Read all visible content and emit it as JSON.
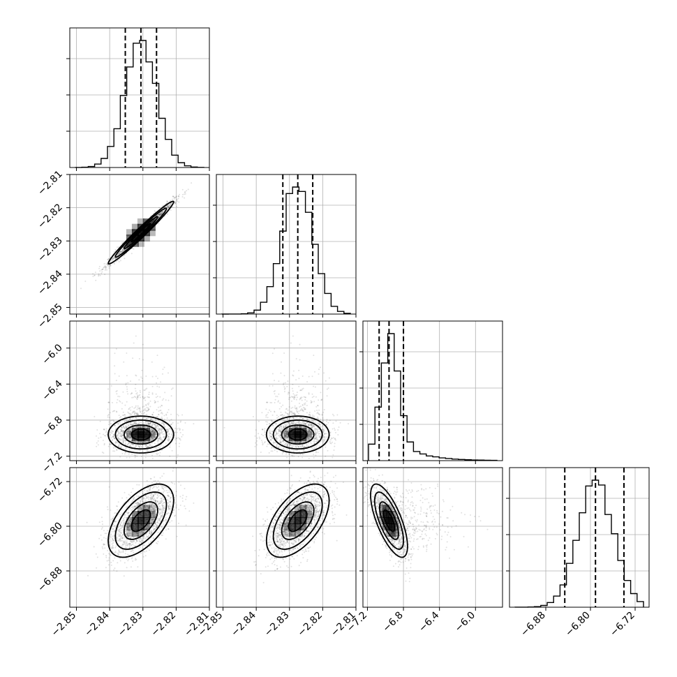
{
  "chart_data": {
    "type": "corner",
    "parameters": [
      {
        "index": 0,
        "range": [
          -2.852,
          -2.81
        ],
        "ticks": [
          -2.85,
          -2.84,
          -2.83,
          -2.82,
          -2.81
        ],
        "tick_labels": [
          "−2.85",
          "−2.84",
          "−2.83",
          "−2.82",
          "−2.81"
        ],
        "mean": -2.8306,
        "sd": 0.0048,
        "quantiles": [
          -2.8353,
          -2.8306,
          -2.8259
        ]
      },
      {
        "index": 1,
        "range": [
          -2.852,
          -2.81
        ],
        "ticks": [
          -2.85,
          -2.84,
          -2.83,
          -2.82,
          -2.81
        ],
        "tick_labels": [
          "−2.85",
          "−2.84",
          "−2.83",
          "−2.82",
          "−2.81"
        ],
        "mean": -2.8275,
        "sd": 0.0046,
        "quantiles": [
          -2.832,
          -2.8275,
          -2.823
        ]
      },
      {
        "index": 2,
        "range": [
          -7.25,
          -5.7
        ],
        "ticks": [
          -7.2,
          -6.8,
          -6.4,
          -6.0
        ],
        "tick_labels": [
          "−7.2",
          "−6.8",
          "−6.4",
          "−6.0"
        ],
        "mean": -6.96,
        "sd": 0.1,
        "quantiles": [
          -7.07,
          -6.96,
          -6.8
        ],
        "skew": "right"
      },
      {
        "index": 3,
        "range": [
          -6.945,
          -6.695
        ],
        "ticks": [
          -6.88,
          -6.8,
          -6.72
        ],
        "tick_labels": [
          "−6.88",
          "−6.80",
          "−6.72"
        ],
        "mean": -6.79,
        "sd": 0.032,
        "quantiles": [
          -6.846,
          -6.791,
          -6.74
        ]
      }
    ],
    "pairs": [
      {
        "row": 1,
        "col": 0,
        "correlation": 0.98
      },
      {
        "row": 2,
        "col": 0,
        "correlation": 0.0
      },
      {
        "row": 2,
        "col": 1,
        "correlation": 0.0
      },
      {
        "row": 3,
        "col": 0,
        "correlation": 0.55
      },
      {
        "row": 3,
        "col": 1,
        "correlation": 0.55
      },
      {
        "row": 3,
        "col": 2,
        "correlation": -0.7
      }
    ],
    "grid": true,
    "quantile_line_style": "dashed"
  }
}
